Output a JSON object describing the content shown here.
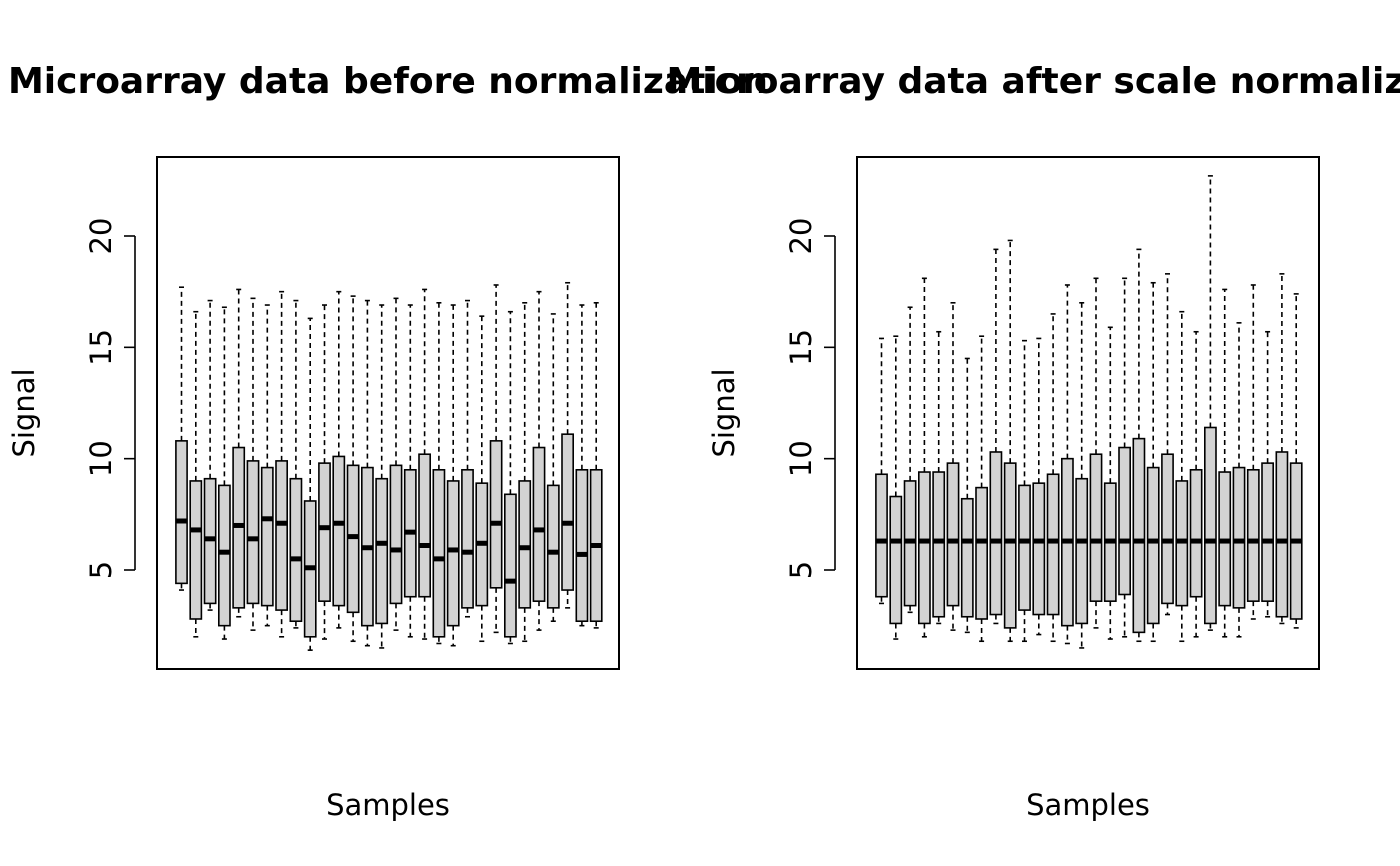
{
  "chart_data": [
    {
      "type": "boxplot",
      "title": "Microarray data before normalization",
      "xlabel": "Samples",
      "ylabel": "Signal",
      "ylim": [
        0,
        23
      ],
      "yticks": [
        5,
        10,
        15,
        20
      ],
      "box_color": "#d3d3d3",
      "boxes": [
        {
          "low": 4.1,
          "q1": 4.4,
          "median": 7.2,
          "q3": 10.8,
          "high": 17.7
        },
        {
          "low": 2.0,
          "q1": 2.8,
          "median": 6.8,
          "q3": 9.0,
          "high": 16.6
        },
        {
          "low": 3.2,
          "q1": 3.5,
          "median": 6.4,
          "q3": 9.1,
          "high": 17.1
        },
        {
          "low": 1.9,
          "q1": 2.5,
          "median": 5.8,
          "q3": 8.8,
          "high": 16.8
        },
        {
          "low": 2.9,
          "q1": 3.3,
          "median": 7.0,
          "q3": 10.5,
          "high": 17.6
        },
        {
          "low": 2.3,
          "q1": 3.5,
          "median": 6.4,
          "q3": 9.9,
          "high": 17.2
        },
        {
          "low": 2.5,
          "q1": 3.4,
          "median": 7.3,
          "q3": 9.6,
          "high": 16.9
        },
        {
          "low": 2.0,
          "q1": 3.2,
          "median": 7.1,
          "q3": 9.9,
          "high": 17.5
        },
        {
          "low": 2.4,
          "q1": 2.7,
          "median": 5.5,
          "q3": 9.1,
          "high": 17.1
        },
        {
          "low": 1.4,
          "q1": 2.0,
          "median": 5.1,
          "q3": 8.1,
          "high": 16.3
        },
        {
          "low": 1.9,
          "q1": 3.6,
          "median": 6.9,
          "q3": 9.8,
          "high": 16.9
        },
        {
          "low": 2.4,
          "q1": 3.4,
          "median": 7.1,
          "q3": 10.1,
          "high": 17.5
        },
        {
          "low": 1.8,
          "q1": 3.1,
          "median": 6.5,
          "q3": 9.7,
          "high": 17.3
        },
        {
          "low": 1.6,
          "q1": 2.5,
          "median": 6.0,
          "q3": 9.6,
          "high": 17.1
        },
        {
          "low": 1.5,
          "q1": 2.6,
          "median": 6.2,
          "q3": 9.1,
          "high": 16.9
        },
        {
          "low": 2.3,
          "q1": 3.5,
          "median": 5.9,
          "q3": 9.7,
          "high": 17.2
        },
        {
          "low": 2.0,
          "q1": 3.8,
          "median": 6.7,
          "q3": 9.5,
          "high": 16.9
        },
        {
          "low": 1.9,
          "q1": 3.8,
          "median": 6.1,
          "q3": 10.2,
          "high": 17.6
        },
        {
          "low": 1.7,
          "q1": 2.0,
          "median": 5.5,
          "q3": 9.5,
          "high": 17.0
        },
        {
          "low": 1.6,
          "q1": 2.5,
          "median": 5.9,
          "q3": 9.0,
          "high": 16.9
        },
        {
          "low": 2.9,
          "q1": 3.3,
          "median": 5.8,
          "q3": 9.5,
          "high": 17.1
        },
        {
          "low": 1.8,
          "q1": 3.4,
          "median": 6.2,
          "q3": 8.9,
          "high": 16.4
        },
        {
          "low": 2.2,
          "q1": 4.2,
          "median": 7.1,
          "q3": 10.8,
          "high": 17.8
        },
        {
          "low": 1.7,
          "q1": 2.0,
          "median": 4.5,
          "q3": 8.4,
          "high": 16.6
        },
        {
          "low": 1.8,
          "q1": 3.3,
          "median": 6.0,
          "q3": 9.0,
          "high": 17.0
        },
        {
          "low": 2.3,
          "q1": 3.6,
          "median": 6.8,
          "q3": 10.5,
          "high": 17.5
        },
        {
          "low": 2.7,
          "q1": 3.3,
          "median": 5.8,
          "q3": 8.8,
          "high": 16.5
        },
        {
          "low": 3.3,
          "q1": 4.1,
          "median": 7.1,
          "q3": 11.1,
          "high": 17.9
        },
        {
          "low": 2.5,
          "q1": 2.7,
          "median": 5.7,
          "q3": 9.5,
          "high": 16.9
        },
        {
          "low": 2.4,
          "q1": 2.7,
          "median": 6.1,
          "q3": 9.5,
          "high": 17.0
        }
      ]
    },
    {
      "type": "boxplot",
      "title": "Microarray data after scale normalization",
      "xlabel": "Samples",
      "ylabel": "Signal",
      "ylim": [
        0,
        23
      ],
      "yticks": [
        5,
        10,
        15,
        20
      ],
      "box_color": "#d3d3d3",
      "boxes": [
        {
          "low": 3.5,
          "q1": 3.8,
          "median": 6.3,
          "q3": 9.3,
          "high": 15.4
        },
        {
          "low": 1.9,
          "q1": 2.6,
          "median": 6.3,
          "q3": 8.3,
          "high": 15.5
        },
        {
          "low": 3.1,
          "q1": 3.4,
          "median": 6.3,
          "q3": 9.0,
          "high": 16.8
        },
        {
          "low": 2.0,
          "q1": 2.6,
          "median": 6.3,
          "q3": 9.4,
          "high": 18.1
        },
        {
          "low": 2.6,
          "q1": 2.9,
          "median": 6.3,
          "q3": 9.4,
          "high": 15.7
        },
        {
          "low": 2.3,
          "q1": 3.4,
          "median": 6.3,
          "q3": 9.8,
          "high": 17.0
        },
        {
          "low": 2.2,
          "q1": 2.9,
          "median": 6.3,
          "q3": 8.2,
          "high": 14.5
        },
        {
          "low": 1.8,
          "q1": 2.8,
          "median": 6.3,
          "q3": 8.7,
          "high": 15.5
        },
        {
          "low": 2.6,
          "q1": 3.0,
          "median": 6.3,
          "q3": 10.3,
          "high": 19.4
        },
        {
          "low": 1.8,
          "q1": 2.4,
          "median": 6.3,
          "q3": 9.8,
          "high": 19.8
        },
        {
          "low": 1.8,
          "q1": 3.2,
          "median": 6.3,
          "q3": 8.8,
          "high": 15.3
        },
        {
          "low": 2.1,
          "q1": 3.0,
          "median": 6.3,
          "q3": 8.9,
          "high": 15.4
        },
        {
          "low": 1.8,
          "q1": 3.0,
          "median": 6.3,
          "q3": 9.3,
          "high": 16.5
        },
        {
          "low": 1.7,
          "q1": 2.5,
          "median": 6.3,
          "q3": 10.0,
          "high": 17.8
        },
        {
          "low": 1.5,
          "q1": 2.6,
          "median": 6.3,
          "q3": 9.1,
          "high": 17.0
        },
        {
          "low": 2.4,
          "q1": 3.6,
          "median": 6.3,
          "q3": 10.2,
          "high": 18.1
        },
        {
          "low": 1.9,
          "q1": 3.6,
          "median": 6.3,
          "q3": 8.9,
          "high": 15.9
        },
        {
          "low": 2.0,
          "q1": 3.9,
          "median": 6.3,
          "q3": 10.5,
          "high": 18.1
        },
        {
          "low": 1.8,
          "q1": 2.2,
          "median": 6.3,
          "q3": 10.9,
          "high": 19.4
        },
        {
          "low": 1.8,
          "q1": 2.6,
          "median": 6.3,
          "q3": 9.6,
          "high": 17.9
        },
        {
          "low": 3.0,
          "q1": 3.5,
          "median": 6.3,
          "q3": 10.2,
          "high": 18.3
        },
        {
          "low": 1.8,
          "q1": 3.4,
          "median": 6.3,
          "q3": 9.0,
          "high": 16.6
        },
        {
          "low": 2.0,
          "q1": 3.8,
          "median": 6.3,
          "q3": 9.5,
          "high": 15.7
        },
        {
          "low": 2.3,
          "q1": 2.6,
          "median": 6.3,
          "q3": 11.4,
          "high": 22.7
        },
        {
          "low": 2.0,
          "q1": 3.4,
          "median": 6.3,
          "q3": 9.4,
          "high": 17.6
        },
        {
          "low": 2.0,
          "q1": 3.3,
          "median": 6.3,
          "q3": 9.6,
          "high": 16.1
        },
        {
          "low": 2.8,
          "q1": 3.6,
          "median": 6.3,
          "q3": 9.5,
          "high": 17.8
        },
        {
          "low": 2.9,
          "q1": 3.6,
          "median": 6.3,
          "q3": 9.8,
          "high": 15.7
        },
        {
          "low": 2.6,
          "q1": 2.9,
          "median": 6.3,
          "q3": 10.3,
          "high": 18.3
        },
        {
          "low": 2.4,
          "q1": 2.8,
          "median": 6.3,
          "q3": 9.8,
          "high": 17.4
        }
      ]
    }
  ]
}
